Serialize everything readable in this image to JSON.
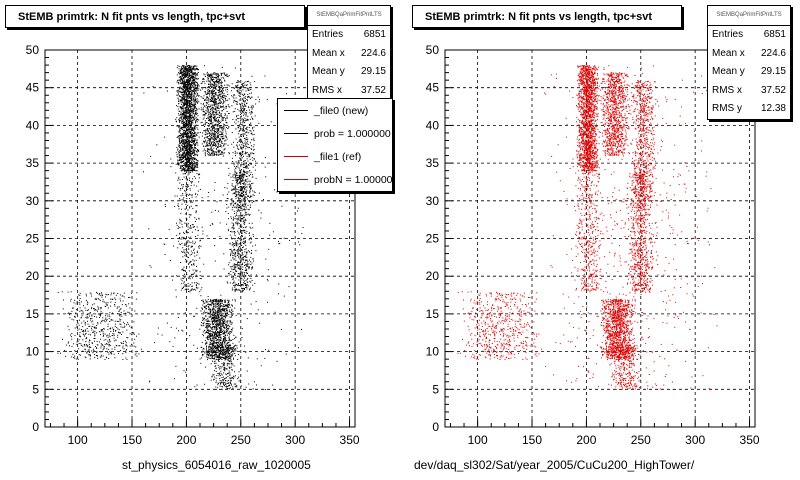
{
  "panels": [
    {
      "id": "left",
      "title": "StEMB primtrk: N fit pnts vs length, tpc+svt",
      "stats": {
        "name": "StEMBQaPrimFitPntLTS",
        "rows": [
          {
            "label": "Entries",
            "value": "6851"
          },
          {
            "label": "Mean x",
            "value": "224.6"
          },
          {
            "label": "Mean y",
            "value": "29.15"
          },
          {
            "label": "RMS x",
            "value": "37.52"
          },
          {
            "label": "RMS y",
            "value": "12.38"
          }
        ]
      },
      "x_title": "st_physics_6054016_raw_1020005"
    },
    {
      "id": "right",
      "title": "StEMB primtrk: N fit pnts vs length, tpc+svt",
      "stats": {
        "name": "StEMBQaPrimFitPntLTS",
        "rows": [
          {
            "label": "Entries",
            "value": "6851"
          },
          {
            "label": "Mean x",
            "value": "224.6"
          },
          {
            "label": "Mean y",
            "value": "29.15"
          },
          {
            "label": "RMS x",
            "value": "37.52"
          },
          {
            "label": "RMS y",
            "value": "12.38"
          }
        ]
      },
      "x_title": "dev/daq_sl302/Sat/year_2005/CuCu200_HighTower/"
    }
  ],
  "legend": {
    "entries": [
      {
        "label": "_file0 (new)",
        "color": "#000000"
      },
      {
        "label": "prob = 1.000000",
        "color": "#000000"
      },
      {
        "label": "_file1 (ref)",
        "color": "#cc0000"
      },
      {
        "label": "probN = 1.000000",
        "color": "#cc0000"
      }
    ]
  },
  "chart_data": [
    {
      "type": "scatter",
      "title": "StEMB primtrk: N fit pnts vs length, tpc+svt",
      "xlabel": "st_physics_6054016_raw_1020005",
      "ylabel": "",
      "xlim": [
        70,
        355
      ],
      "ylim": [
        0,
        50
      ],
      "xticks": [
        100,
        150,
        200,
        250,
        300,
        350
      ],
      "yticks": [
        0,
        5,
        10,
        15,
        20,
        25,
        30,
        35,
        40,
        45,
        50
      ],
      "grid": true,
      "color": "#000000",
      "entries": 6851,
      "clusters": [
        {
          "x": [
            190,
            212
          ],
          "y": [
            34,
            48
          ],
          "share": 0.3
        },
        {
          "x": [
            212,
            240
          ],
          "y": [
            36,
            47
          ],
          "share": 0.14
        },
        {
          "x": [
            240,
            265
          ],
          "y": [
            30,
            46
          ],
          "share": 0.08
        },
        {
          "x": [
            236,
            262
          ],
          "y": [
            18,
            34
          ],
          "share": 0.1
        },
        {
          "x": [
            212,
            245
          ],
          "y": [
            9,
            17
          ],
          "share": 0.16
        },
        {
          "x": [
            222,
            250
          ],
          "y": [
            5,
            11
          ],
          "share": 0.04
        },
        {
          "x": [
            80,
            160
          ],
          "y": [
            9,
            18
          ],
          "share": 0.08
        },
        {
          "x": [
            188,
            215
          ],
          "y": [
            18,
            34
          ],
          "share": 0.05
        },
        {
          "x": [
            150,
            320
          ],
          "y": [
            5,
            48
          ],
          "share": 0.05
        }
      ]
    },
    {
      "type": "scatter",
      "title": "StEMB primtrk: N fit pnts vs length, tpc+svt",
      "xlabel": "dev/daq_sl302/Sat/year_2005/CuCu200_HighTower/",
      "ylabel": "",
      "xlim": [
        70,
        355
      ],
      "ylim": [
        0,
        50
      ],
      "xticks": [
        100,
        150,
        200,
        250,
        300,
        350
      ],
      "yticks": [
        0,
        5,
        10,
        15,
        20,
        25,
        30,
        35,
        40,
        45,
        50
      ],
      "grid": true,
      "color": "#dd0000",
      "entries": 6851,
      "clusters": [
        {
          "x": [
            190,
            212
          ],
          "y": [
            34,
            48
          ],
          "share": 0.25
        },
        {
          "x": [
            212,
            240
          ],
          "y": [
            36,
            47
          ],
          "share": 0.13
        },
        {
          "x": [
            240,
            265
          ],
          "y": [
            30,
            46
          ],
          "share": 0.09
        },
        {
          "x": [
            236,
            262
          ],
          "y": [
            18,
            34
          ],
          "share": 0.1
        },
        {
          "x": [
            212,
            245
          ],
          "y": [
            9,
            17
          ],
          "share": 0.16
        },
        {
          "x": [
            222,
            250
          ],
          "y": [
            5,
            11
          ],
          "share": 0.04
        },
        {
          "x": [
            80,
            160
          ],
          "y": [
            9,
            18
          ],
          "share": 0.08
        },
        {
          "x": [
            188,
            215
          ],
          "y": [
            18,
            34
          ],
          "share": 0.06
        },
        {
          "x": [
            150,
            330
          ],
          "y": [
            5,
            48
          ],
          "share": 0.09
        }
      ]
    }
  ]
}
